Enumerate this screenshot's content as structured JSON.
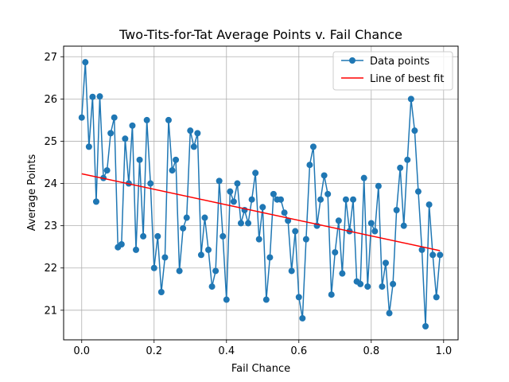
{
  "chart_data": {
    "type": "line",
    "title": "Two-Tits-for-Tat Average Points v. Fail Chance",
    "xlabel": "Fail Chance",
    "ylabel": "Average Points",
    "xlim": [
      -0.05,
      1.04
    ],
    "ylim": [
      20.3,
      27.25
    ],
    "x_ticks": [
      0.0,
      0.2,
      0.4,
      0.6,
      0.8,
      1.0
    ],
    "x_tick_labels": [
      "0.0",
      "0.2",
      "0.4",
      "0.6",
      "0.8",
      "1.0"
    ],
    "y_ticks": [
      21,
      22,
      23,
      24,
      25,
      26,
      27
    ],
    "y_tick_labels": [
      "21",
      "22",
      "23",
      "24",
      "25",
      "26",
      "27"
    ],
    "grid": true,
    "legend_position": "upper right",
    "series": [
      {
        "name": "Data points",
        "kind": "line-with-markers",
        "color": "#1f77b4",
        "x": [
          0.0,
          0.01,
          0.02,
          0.03,
          0.04,
          0.05,
          0.06,
          0.07,
          0.08,
          0.09,
          0.1,
          0.11,
          0.12,
          0.13,
          0.14,
          0.15,
          0.16,
          0.17,
          0.18,
          0.19,
          0.2,
          0.21,
          0.22,
          0.23,
          0.24,
          0.25,
          0.26,
          0.27,
          0.28,
          0.29,
          0.3,
          0.31,
          0.32,
          0.33,
          0.34,
          0.35,
          0.36,
          0.37,
          0.38,
          0.39,
          0.4,
          0.41,
          0.42,
          0.43,
          0.44,
          0.45,
          0.46,
          0.47,
          0.48,
          0.49,
          0.5,
          0.51,
          0.52,
          0.53,
          0.54,
          0.55,
          0.56,
          0.57,
          0.58,
          0.59,
          0.6,
          0.61,
          0.62,
          0.63,
          0.64,
          0.65,
          0.66,
          0.67,
          0.68,
          0.69,
          0.7,
          0.71,
          0.72,
          0.73,
          0.74,
          0.75,
          0.76,
          0.77,
          0.78,
          0.79,
          0.8,
          0.81,
          0.82,
          0.83,
          0.84,
          0.85,
          0.86,
          0.87,
          0.88,
          0.89,
          0.9,
          0.91,
          0.92,
          0.93,
          0.94,
          0.95,
          0.96,
          0.97,
          0.98,
          0.99
        ],
        "y": [
          25.56,
          26.87,
          24.87,
          26.05,
          23.57,
          26.06,
          24.13,
          24.31,
          25.19,
          25.56,
          22.49,
          22.56,
          25.06,
          24.0,
          25.37,
          22.43,
          24.56,
          22.75,
          25.5,
          24.0,
          22.0,
          22.75,
          21.43,
          22.25,
          25.5,
          24.31,
          24.56,
          21.93,
          22.94,
          23.19,
          25.25,
          24.87,
          25.19,
          22.31,
          23.19,
          22.43,
          21.56,
          21.93,
          24.06,
          22.75,
          21.25,
          23.81,
          23.57,
          24.0,
          23.06,
          23.37,
          23.06,
          23.62,
          24.25,
          22.68,
          23.44,
          21.25,
          22.25,
          23.75,
          23.62,
          23.62,
          23.31,
          23.12,
          21.93,
          22.87,
          21.31,
          20.81,
          22.68,
          24.44,
          24.87,
          23.0,
          23.62,
          24.19,
          23.75,
          21.37,
          22.37,
          23.12,
          21.87,
          23.62,
          22.87,
          23.62,
          21.68,
          21.62,
          24.13,
          21.56,
          23.06,
          22.87,
          23.94,
          21.56,
          22.12,
          20.93,
          21.62,
          23.37,
          24.37,
          23.0,
          24.56,
          26.0,
          25.25,
          23.81,
          22.43,
          20.62,
          23.5,
          22.31,
          21.31,
          22.31
        ]
      },
      {
        "name": "Line of best fit",
        "kind": "line",
        "color": "#ff0000",
        "x": [
          0.0,
          0.99
        ],
        "y": [
          24.23,
          22.41
        ]
      }
    ]
  }
}
